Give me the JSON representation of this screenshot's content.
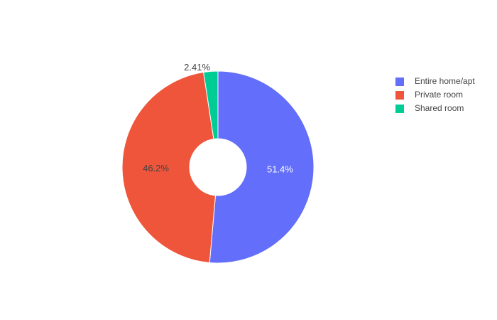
{
  "chart_data": {
    "type": "pie",
    "categories": [
      "Entire home/apt",
      "Private room",
      "Shared room"
    ],
    "values": [
      51.4,
      46.2,
      2.41
    ],
    "value_labels": [
      "51.4%",
      "46.2%",
      "2.41%"
    ],
    "colors": [
      "#636efa",
      "#ef553b",
      "#00cc96"
    ],
    "legend": "top-right"
  }
}
